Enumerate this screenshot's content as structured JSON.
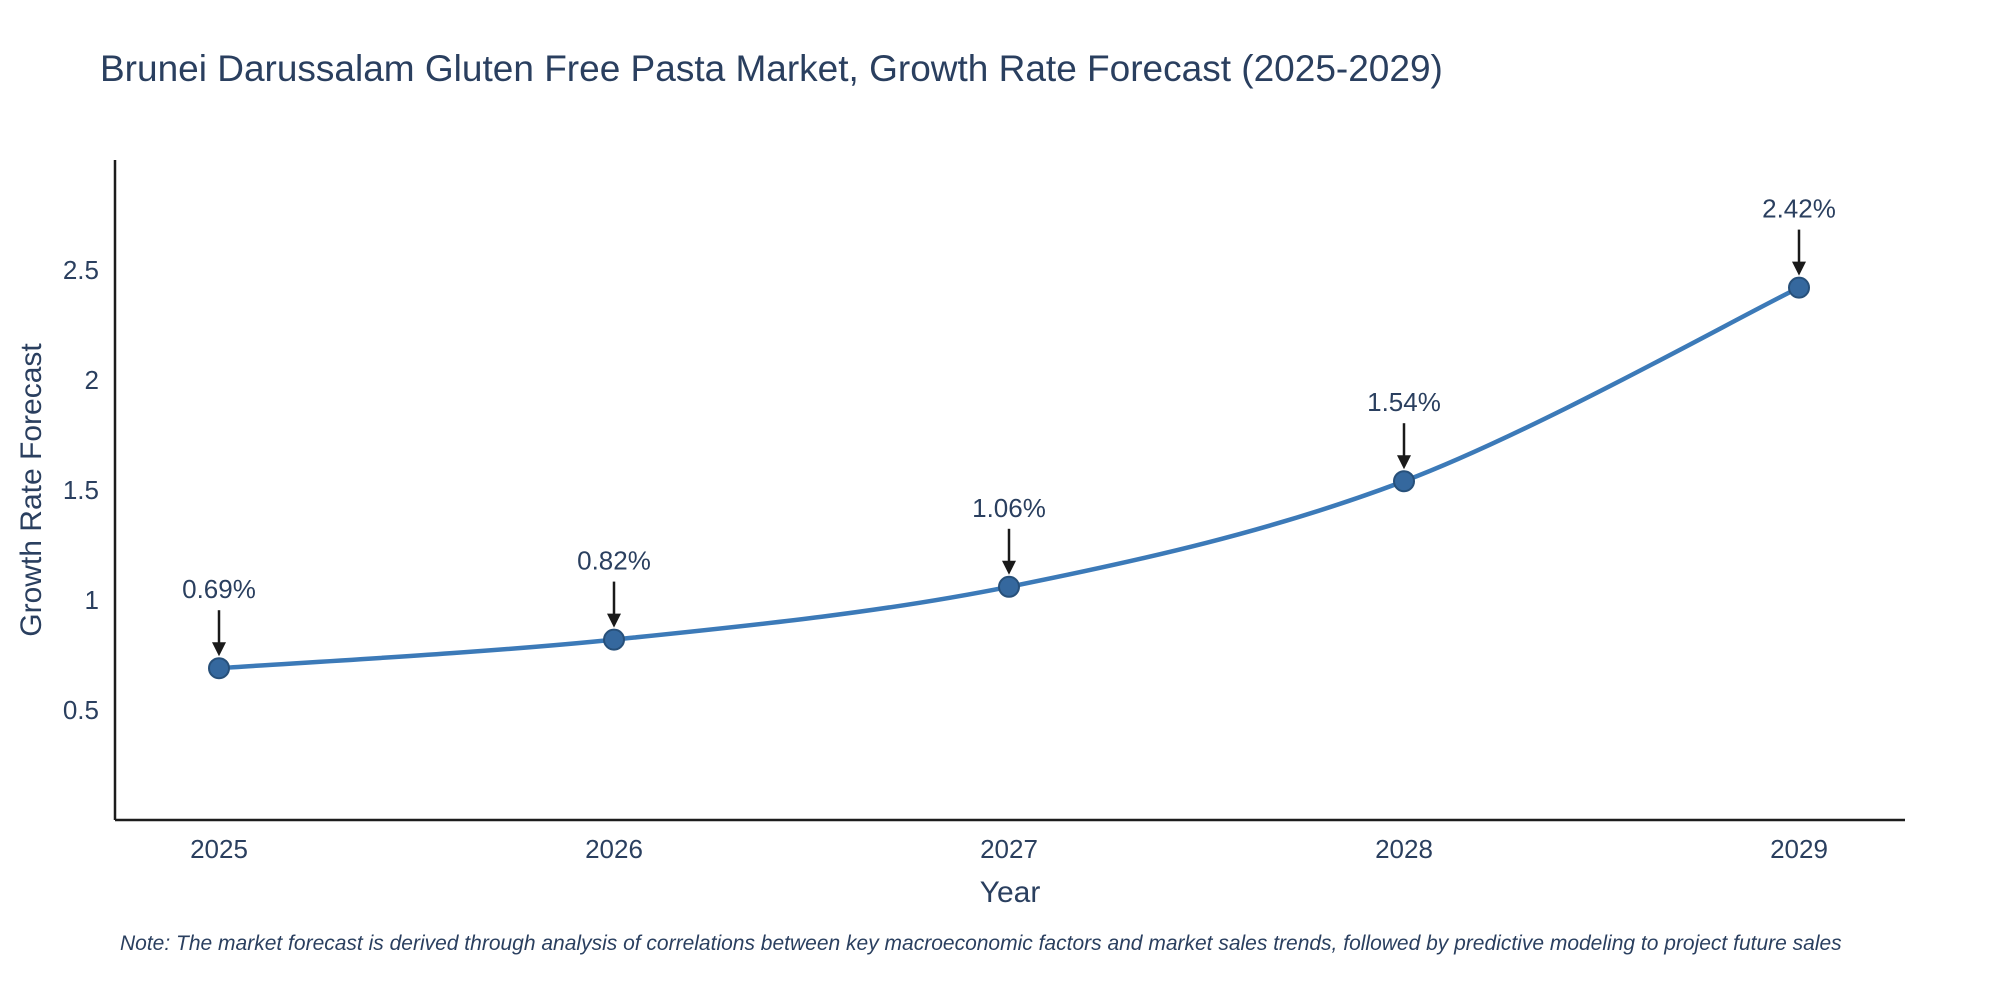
{
  "title": "Brunei Darussalam Gluten Free Pasta Market, Growth Rate Forecast (2025-2029)",
  "note": "Note: The market forecast is derived through analysis of correlations between key macroeconomic factors and market sales trends, followed by predictive modeling to project future sales",
  "chart_data": {
    "type": "line",
    "title": "Brunei Darussalam Gluten Free Pasta Market, Growth Rate Forecast (2025-2029)",
    "x": [
      "2025",
      "2026",
      "2027",
      "2028",
      "2029"
    ],
    "series": [
      {
        "name": "Growth Rate Forecast",
        "values": [
          0.69,
          0.82,
          1.06,
          1.54,
          2.42
        ]
      }
    ],
    "point_labels": [
      "0.69%",
      "0.82%",
      "1.06%",
      "1.54%",
      "2.42%"
    ],
    "xlabel": "Year",
    "ylabel": "Growth Rate Forecast",
    "ylim": [
      0,
      3
    ],
    "yticks": [
      0.5,
      1,
      1.5,
      2,
      2.5
    ],
    "ytick_labels": [
      "0.5",
      "1",
      "1.5",
      "2",
      "2.5"
    ],
    "grid": false,
    "legend": "none",
    "smooth": true,
    "line_color": "#3c7ab8",
    "marker_color": "#35689e",
    "marker_edge_color": "#27507a",
    "axis_color": "#1c1c1c",
    "tick_color": "#2a3f5f",
    "annotation_text_color": "#2a3f5f",
    "annotation_arrow_color": "#1a1a1a"
  }
}
